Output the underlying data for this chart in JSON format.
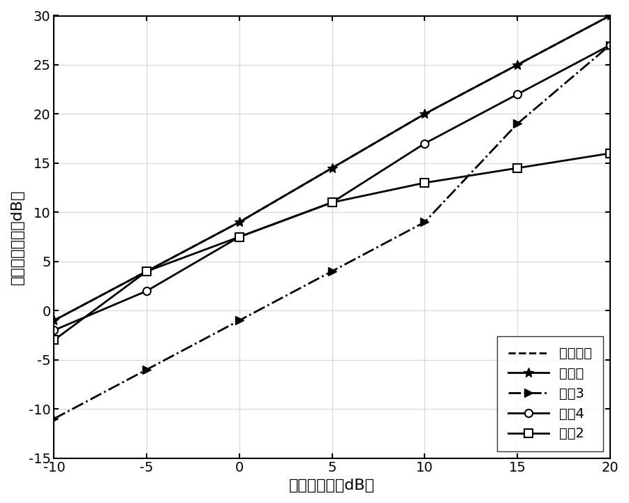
{
  "x": [
    -10,
    -5,
    0,
    5,
    10,
    15,
    20
  ],
  "theory_upper": [
    -1,
    4,
    9,
    14.5,
    20,
    25,
    30
  ],
  "ben_faming": [
    -1,
    4,
    9,
    14.5,
    20,
    25,
    30
  ],
  "wenxian3": [
    -11,
    -6,
    -1,
    4,
    9,
    19,
    27
  ],
  "wenxian4": [
    -2,
    2,
    7.5,
    11,
    17,
    22,
    27
  ],
  "wenxian2": [
    -3,
    4,
    7.5,
    11,
    13,
    14.5,
    16
  ],
  "xlabel": "输入信噪比（dB）",
  "ylabel": "输出信干噪比（dB）",
  "legend_theory": "理论上限",
  "legend_ben": "本发明",
  "legend_w3": "文献3",
  "legend_w4": "文献4",
  "legend_w2": "文献2",
  "xlim": [
    -10,
    20
  ],
  "ylim": [
    -15,
    30
  ],
  "xticks": [
    -10,
    -5,
    0,
    5,
    10,
    15,
    20
  ],
  "yticks": [
    -15,
    -10,
    -5,
    0,
    5,
    10,
    15,
    20,
    25,
    30
  ],
  "line_color": "#000000",
  "background_color": "#ffffff",
  "grid_color": "#cccccc"
}
